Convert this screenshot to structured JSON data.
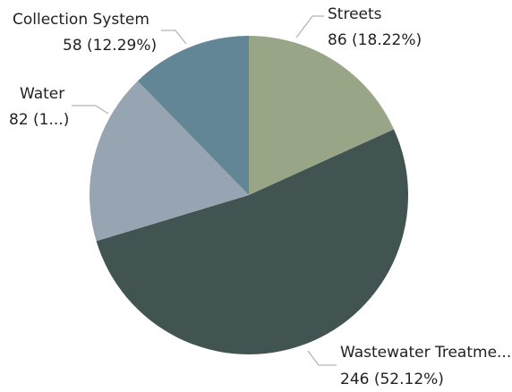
{
  "chart_data": {
    "type": "pie",
    "title": "",
    "categories": [
      "Streets",
      "Wastewater Treatme...",
      "Water",
      "Collection System"
    ],
    "values": [
      86,
      246,
      82,
      58
    ],
    "value_labels": [
      "86 (18.22%)",
      "246 (52.12%)",
      "82 (1...)",
      "58 (12.29%)"
    ],
    "colors": [
      "#98a687",
      "#425452",
      "#97a5b2",
      "#628696"
    ],
    "legend": "none"
  }
}
